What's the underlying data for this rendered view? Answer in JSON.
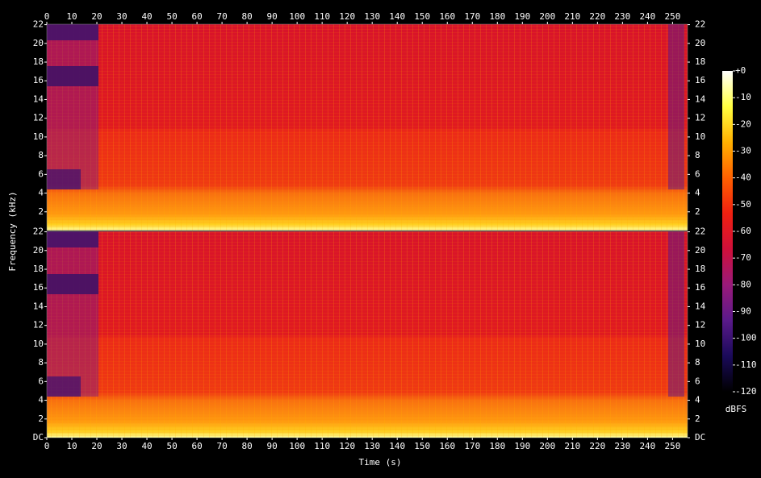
{
  "chart_data": {
    "type": "spectrogram",
    "xlabel": "Time (s)",
    "ylabel": "Frequency (kHz)",
    "xlim": [
      0,
      256
    ],
    "xticks": [
      0,
      10,
      20,
      30,
      40,
      50,
      60,
      70,
      80,
      90,
      100,
      110,
      120,
      130,
      140,
      150,
      160,
      170,
      180,
      190,
      200,
      210,
      220,
      230,
      240,
      250
    ],
    "ylim": [
      0,
      22.05
    ],
    "channels": [
      {
        "yticks": [
          2,
          4,
          6,
          8,
          10,
          12,
          14,
          16,
          18,
          20,
          22
        ]
      },
      {
        "yticks": [
          {
            "value": 0,
            "label": "DC"
          },
          2,
          4,
          6,
          8,
          10,
          12,
          14,
          16,
          18,
          20,
          22
        ]
      }
    ],
    "colorbar": {
      "label": "dBFS",
      "zlim": [
        -120,
        0
      ],
      "ticks": [
        {
          "value": 0,
          "label": "+0"
        },
        -10,
        -20,
        -30,
        -40,
        -50,
        -60,
        -70,
        -80,
        -90,
        -100,
        -110,
        -120
      ],
      "colormap": [
        "#000000",
        "#1a0a5a",
        "#5a1a8a",
        "#9a1a7a",
        "#d0103a",
        "#f02010",
        "#ff6000",
        "#ffb000",
        "#ffff40",
        "#ffffff"
      ]
    }
  }
}
